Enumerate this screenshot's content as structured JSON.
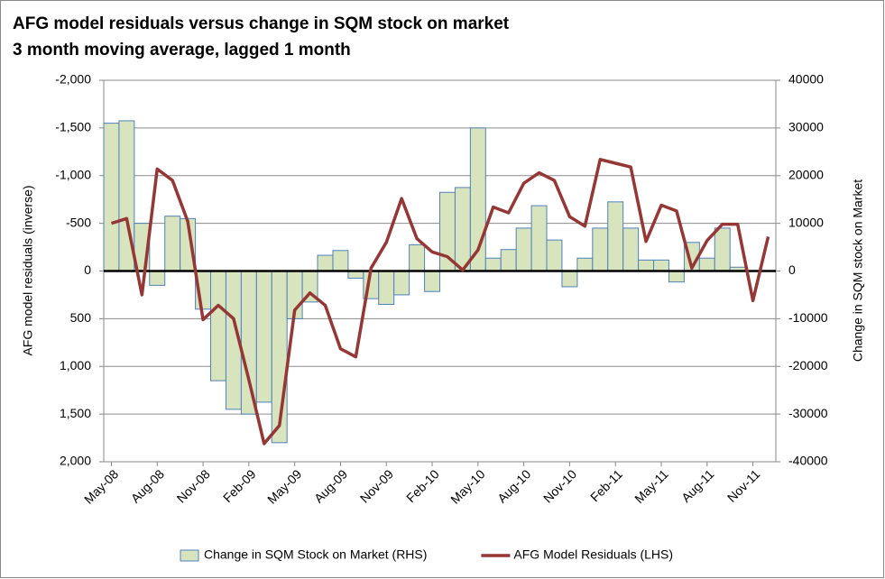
{
  "chart_data": {
    "type": "bar-line",
    "title": "AFG model residuals versus change in SQM stock on market",
    "subtitle": "3 month moving average, lagged 1 month",
    "y_label": "AFG model residuals (inverse)",
    "y2_label": "Change in SQM stock on Market",
    "categories": [
      "May-08",
      null,
      null,
      "Aug-08",
      null,
      null,
      "Nov-08",
      null,
      null,
      "Feb-09",
      null,
      null,
      "May-09",
      null,
      null,
      "Aug-09",
      null,
      null,
      "Nov-09",
      null,
      null,
      "Feb-10",
      null,
      null,
      "May-10",
      null,
      null,
      "Aug-10",
      null,
      null,
      "Nov-10",
      null,
      null,
      "Feb-11",
      null,
      null,
      "May-11",
      null,
      null,
      "Aug-11",
      null,
      null,
      "Nov-11",
      null
    ],
    "series": [
      {
        "name": "Change in SQM Stock on Market (RHS)",
        "type": "bar",
        "axis": "y2",
        "color": "#d7e4bd",
        "edge_color": "#4f81bd",
        "values": [
          31000,
          31500,
          10000,
          -3000,
          11500,
          11000,
          -8000,
          -23000,
          -29000,
          -30000,
          -27500,
          -36000,
          -10000,
          -6500,
          3300,
          4300,
          -1500,
          -5800,
          -7000,
          -5000,
          5500,
          -4300,
          16500,
          17500,
          30000,
          2700,
          4500,
          9000,
          13700,
          6500,
          -3300,
          2700,
          9000,
          14500,
          9000,
          2300,
          2300,
          -2300,
          6000,
          2700,
          9000,
          800,
          null,
          null
        ]
      },
      {
        "name": "AFG Model Residuals (LHS)",
        "type": "line",
        "axis": "y",
        "color": "#953735",
        "values": [
          -500,
          -550,
          250,
          -1070,
          -950,
          -520,
          510,
          360,
          500,
          1140,
          1810,
          1620,
          410,
          230,
          360,
          815,
          900,
          -30,
          -300,
          -760,
          -340,
          -200,
          -150,
          -10,
          -220,
          -670,
          -610,
          -920,
          -1030,
          -950,
          -570,
          -470,
          -1170,
          -1130,
          -1090,
          -310,
          -690,
          -630,
          -30,
          -320,
          -490,
          -490,
          310,
          -360
        ]
      }
    ],
    "ylim": [
      -2000,
      2000
    ],
    "y_inverted": true,
    "yticks": [
      {
        "value": -2000,
        "label": "-2,000"
      },
      {
        "value": -1500,
        "label": "-1,500"
      },
      {
        "value": -1000,
        "label": "-1,000"
      },
      -500,
      0,
      500,
      {
        "value": 1000,
        "label": "1,000"
      },
      {
        "value": 1500,
        "label": "1,500"
      },
      {
        "value": 2000,
        "label": "2,000"
      }
    ],
    "y2lim": [
      -40000,
      40000
    ],
    "y2ticks": [
      -40000,
      -30000,
      -20000,
      -10000,
      0,
      10000,
      20000,
      30000,
      40000
    ],
    "grid": true,
    "legend": "bottom"
  }
}
